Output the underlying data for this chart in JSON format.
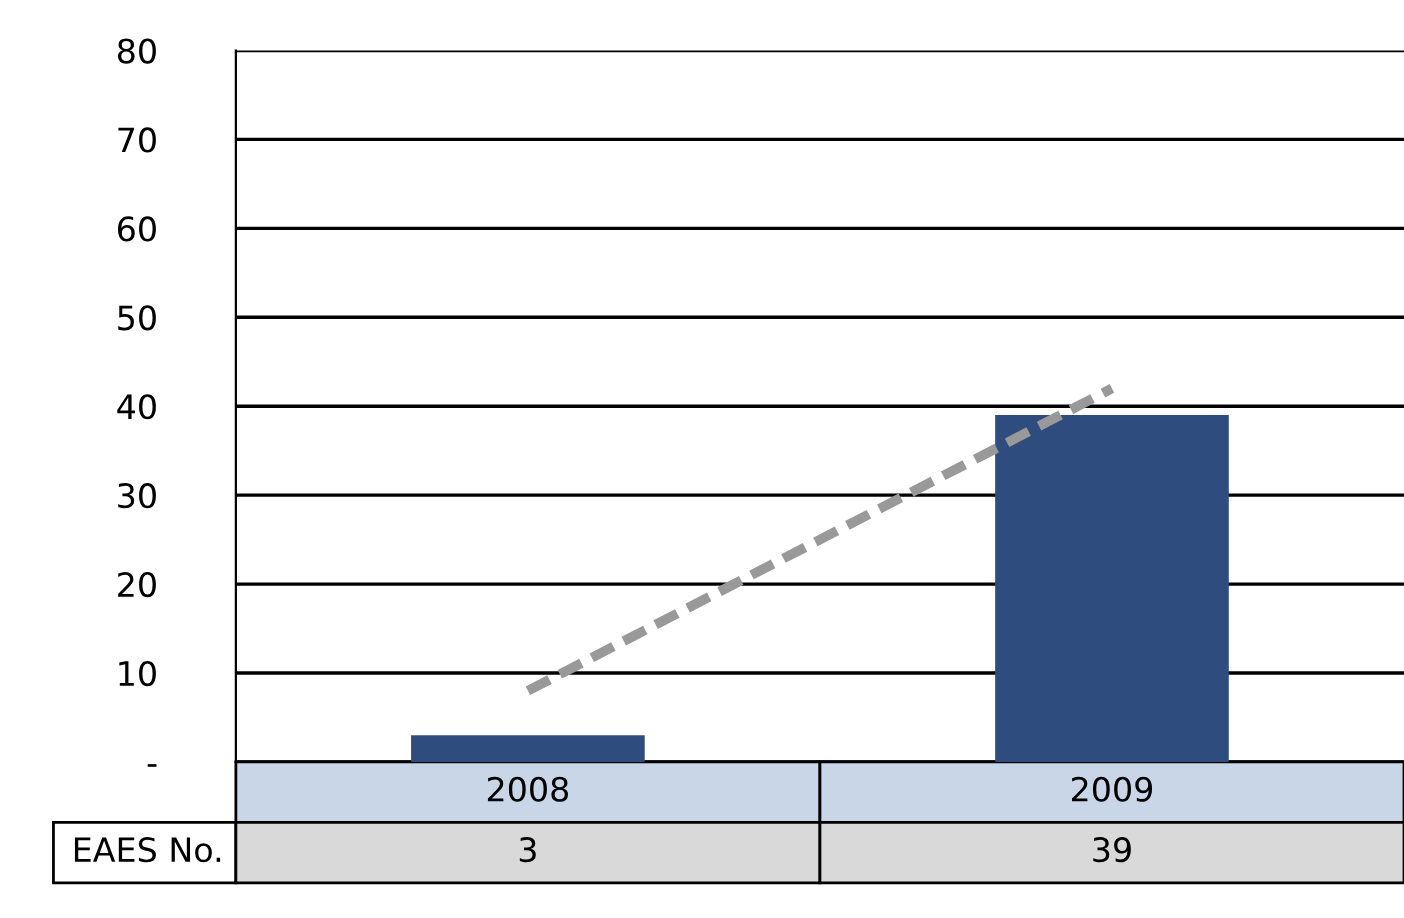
{
  "chart_data": {
    "type": "bar",
    "categories": [
      "2008",
      "2009"
    ],
    "series": [
      {
        "name": "EAES No.",
        "color": "#2e4d7e",
        "values": [
          3,
          39
        ],
        "value_labels": [
          "3",
          "39"
        ]
      },
      {
        "type": "line",
        "color": "#999999",
        "line_style": "dashed",
        "values": [
          8,
          42
        ]
      }
    ],
    "ylim": [
      0,
      80
    ],
    "yticks": [
      {
        "value": 0,
        "label": "-"
      },
      10,
      20,
      30,
      40,
      50,
      60,
      70,
      80
    ],
    "grid": "y",
    "legend": false
  }
}
